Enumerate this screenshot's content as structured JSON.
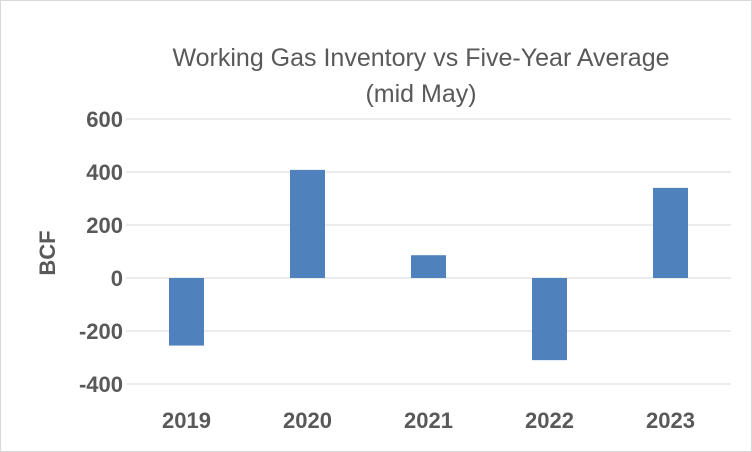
{
  "chart_data": {
    "type": "bar",
    "title": [
      "Working Gas Inventory vs Five-Year Average",
      "(mid May)"
    ],
    "ylabel": "BCF",
    "xlabel": "",
    "categories": [
      "2019",
      "2020",
      "2021",
      "2022",
      "2023"
    ],
    "values": [
      -255,
      408,
      86,
      -310,
      340
    ],
    "ylim": [
      -400,
      600
    ],
    "yticks": [
      -400,
      -200,
      0,
      200,
      400,
      600
    ],
    "ytick_labels": [
      "-400",
      "-200",
      "0",
      "200",
      "400",
      "600"
    ],
    "grid": true,
    "legend": "none",
    "bar_color": "#4f81bd",
    "grid_color": "#d9d9d9"
  }
}
